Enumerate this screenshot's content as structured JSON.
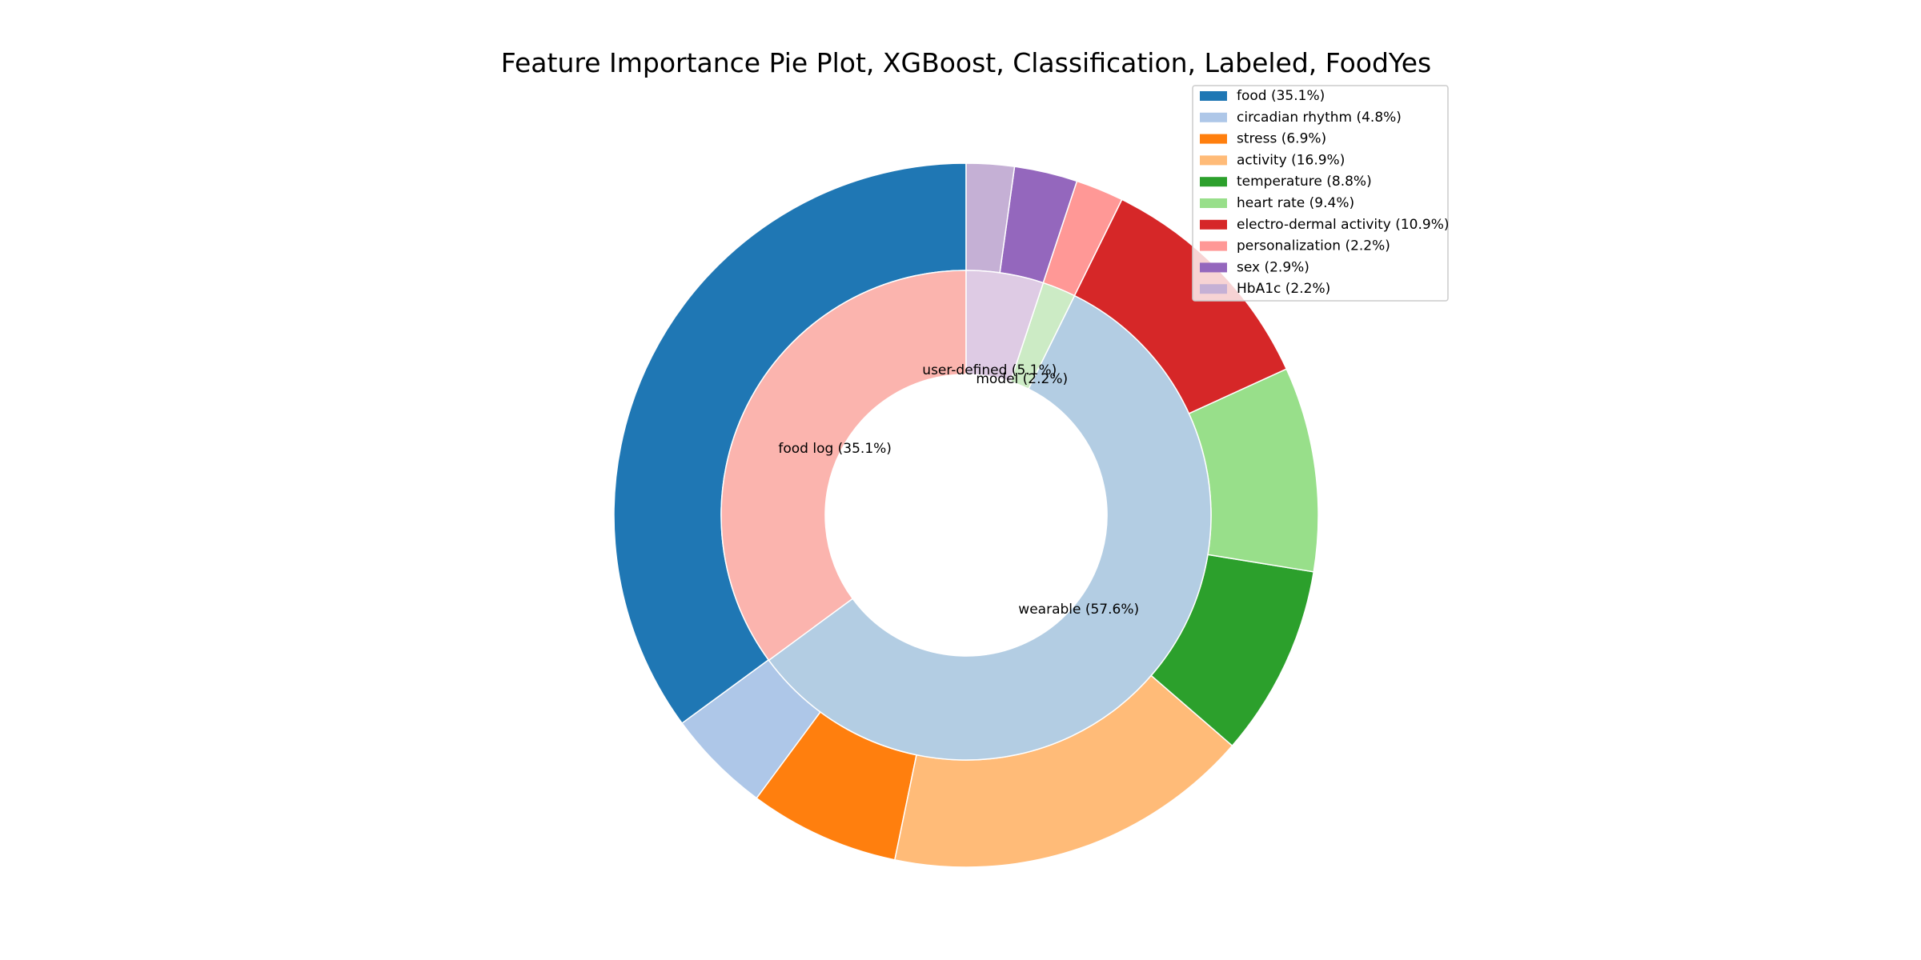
{
  "chart_data": {
    "type": "pie",
    "variant": "nested-donut",
    "title": "Feature Importance Pie Plot, XGBoost, Classification, Labeled, FoodYes",
    "start": "top",
    "direction": "counterclockwise",
    "outer_ring": [
      {
        "name": "food",
        "value": 35.1,
        "label": "food (35.1%)",
        "color": "#1f77b4"
      },
      {
        "name": "circadian rhythm",
        "value": 4.8,
        "label": "circadian rhythm (4.8%)",
        "color": "#aec7e8"
      },
      {
        "name": "stress",
        "value": 6.9,
        "label": "stress (6.9%)",
        "color": "#ff7f0e"
      },
      {
        "name": "activity",
        "value": 16.9,
        "label": "activity (16.9%)",
        "color": "#ffbb78"
      },
      {
        "name": "temperature",
        "value": 8.8,
        "label": "temperature (8.8%)",
        "color": "#2ca02c"
      },
      {
        "name": "heart rate",
        "value": 9.4,
        "label": "heart rate (9.4%)",
        "color": "#98df8a"
      },
      {
        "name": "electro-dermal activity",
        "value": 10.9,
        "label": "electro-dermal activity (10.9%)",
        "color": "#d62728"
      },
      {
        "name": "personalization",
        "value": 2.2,
        "label": "personalization (2.2%)",
        "color": "#ff9896"
      },
      {
        "name": "sex",
        "value": 2.9,
        "label": "sex (2.9%)",
        "color": "#9467bd"
      },
      {
        "name": "HbA1c",
        "value": 2.2,
        "label": "HbA1c (2.2%)",
        "color": "#c5b0d5"
      }
    ],
    "inner_ring": [
      {
        "name": "food log",
        "value": 35.1,
        "label": "food log (35.1%)",
        "color": "#fbb4ae"
      },
      {
        "name": "wearable",
        "value": 57.6,
        "label": "wearable (57.6%)",
        "color": "#b3cde3"
      },
      {
        "name": "model",
        "value": 2.2,
        "label": "model (2.2%)",
        "color": "#ccebc5"
      },
      {
        "name": "user-defined",
        "value": 5.1,
        "label": "user-defined (5.1%)",
        "color": "#decbe4"
      }
    ],
    "legend": {
      "placement": "top-right",
      "entries": [
        "food (35.1%)",
        "circadian rhythm (4.8%)",
        "stress (6.9%)",
        "activity (16.9%)",
        "temperature (8.8%)",
        "heart rate (9.4%)",
        "electro-dermal activity (10.9%)",
        "personalization (2.2%)",
        "sex (2.9%)",
        "HbA1c (2.2%)"
      ]
    }
  }
}
